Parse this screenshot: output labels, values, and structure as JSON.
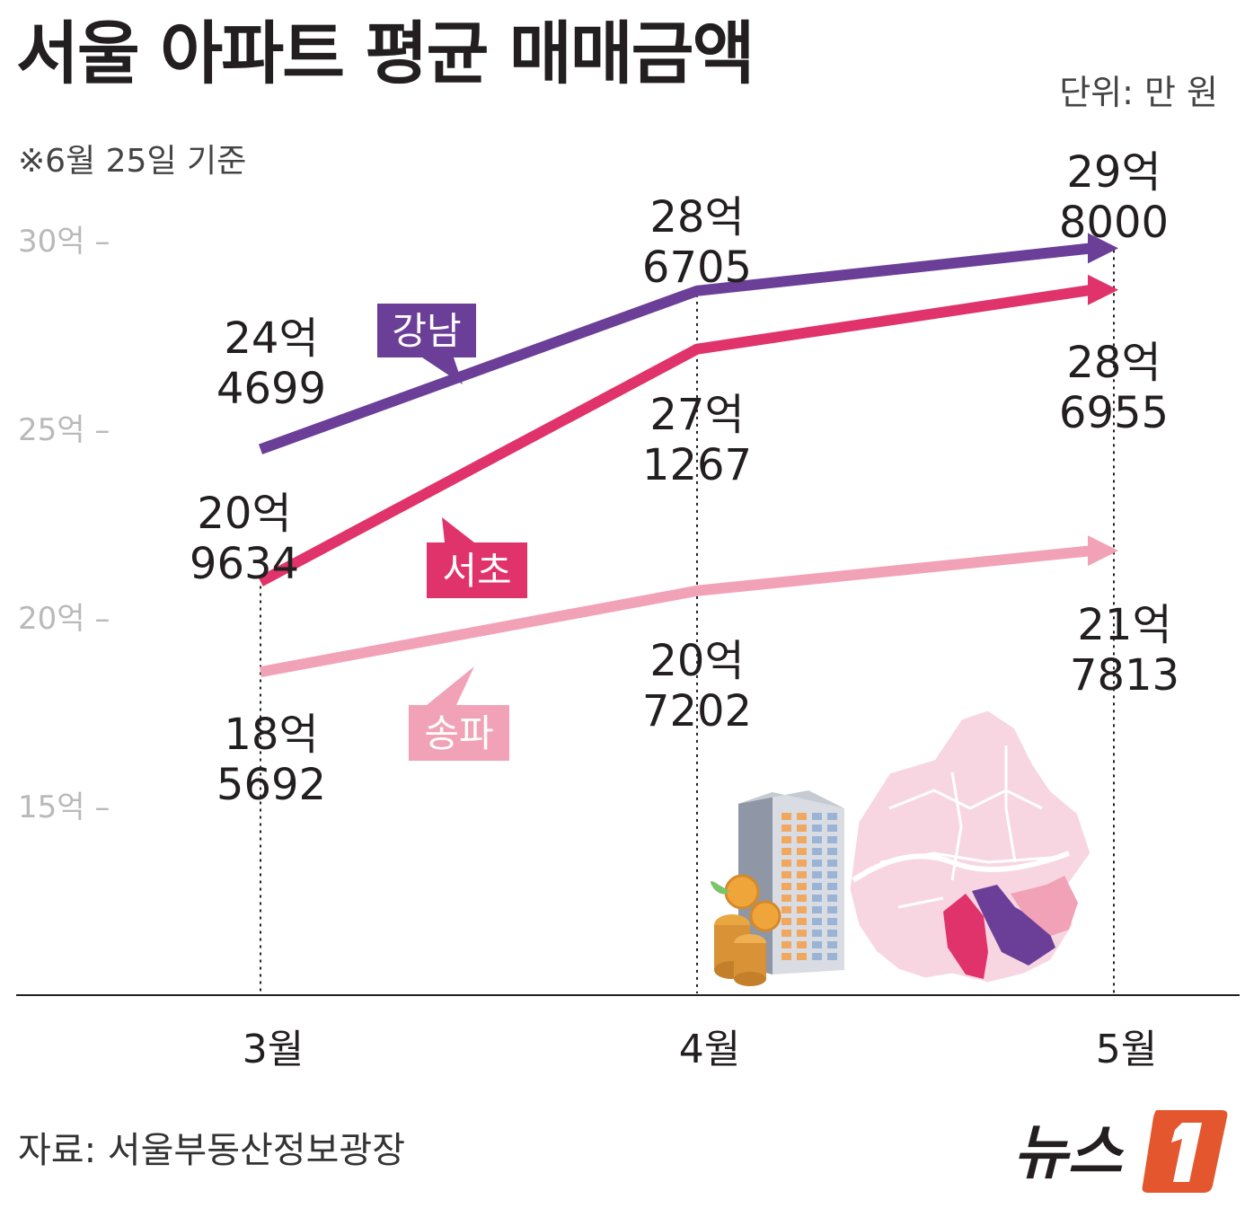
{
  "title": "서울 아파트 평균 매매금액",
  "unit": "단위: 만 원",
  "note": "※6월 25일 기준",
  "source": "자료: 서울부동산정보광장",
  "logo_text": "뉴스1",
  "colors": {
    "강남": "#6b3f98",
    "서초": "#e0336b",
    "송파": "#f2a2b6"
  },
  "chart_data": {
    "type": "line",
    "categories": [
      "3월",
      "4월",
      "5월"
    ],
    "ylim": [
      100000,
      300000
    ],
    "yticks": [
      {
        "value": 300000,
        "label": "30억"
      },
      {
        "value": 250000,
        "label": "25억"
      },
      {
        "value": 200000,
        "label": "20억"
      },
      {
        "value": 150000,
        "label": "15억"
      }
    ],
    "series": [
      {
        "name": "강남",
        "values": [
          244699,
          286705,
          298000
        ],
        "labels": [
          [
            "24억",
            "4699"
          ],
          [
            "28억",
            "6705"
          ],
          [
            "29억",
            "8000"
          ]
        ]
      },
      {
        "name": "서초",
        "values": [
          209634,
          271267,
          286955
        ],
        "labels": [
          [
            "20억",
            "9634"
          ],
          [
            "27억",
            "1267"
          ],
          [
            "28억",
            "6955"
          ]
        ]
      },
      {
        "name": "송파",
        "values": [
          185692,
          207202,
          217813
        ],
        "labels": [
          [
            "18억",
            "5692"
          ],
          [
            "20억",
            "7202"
          ],
          [
            "21억",
            "7813"
          ]
        ]
      }
    ]
  }
}
